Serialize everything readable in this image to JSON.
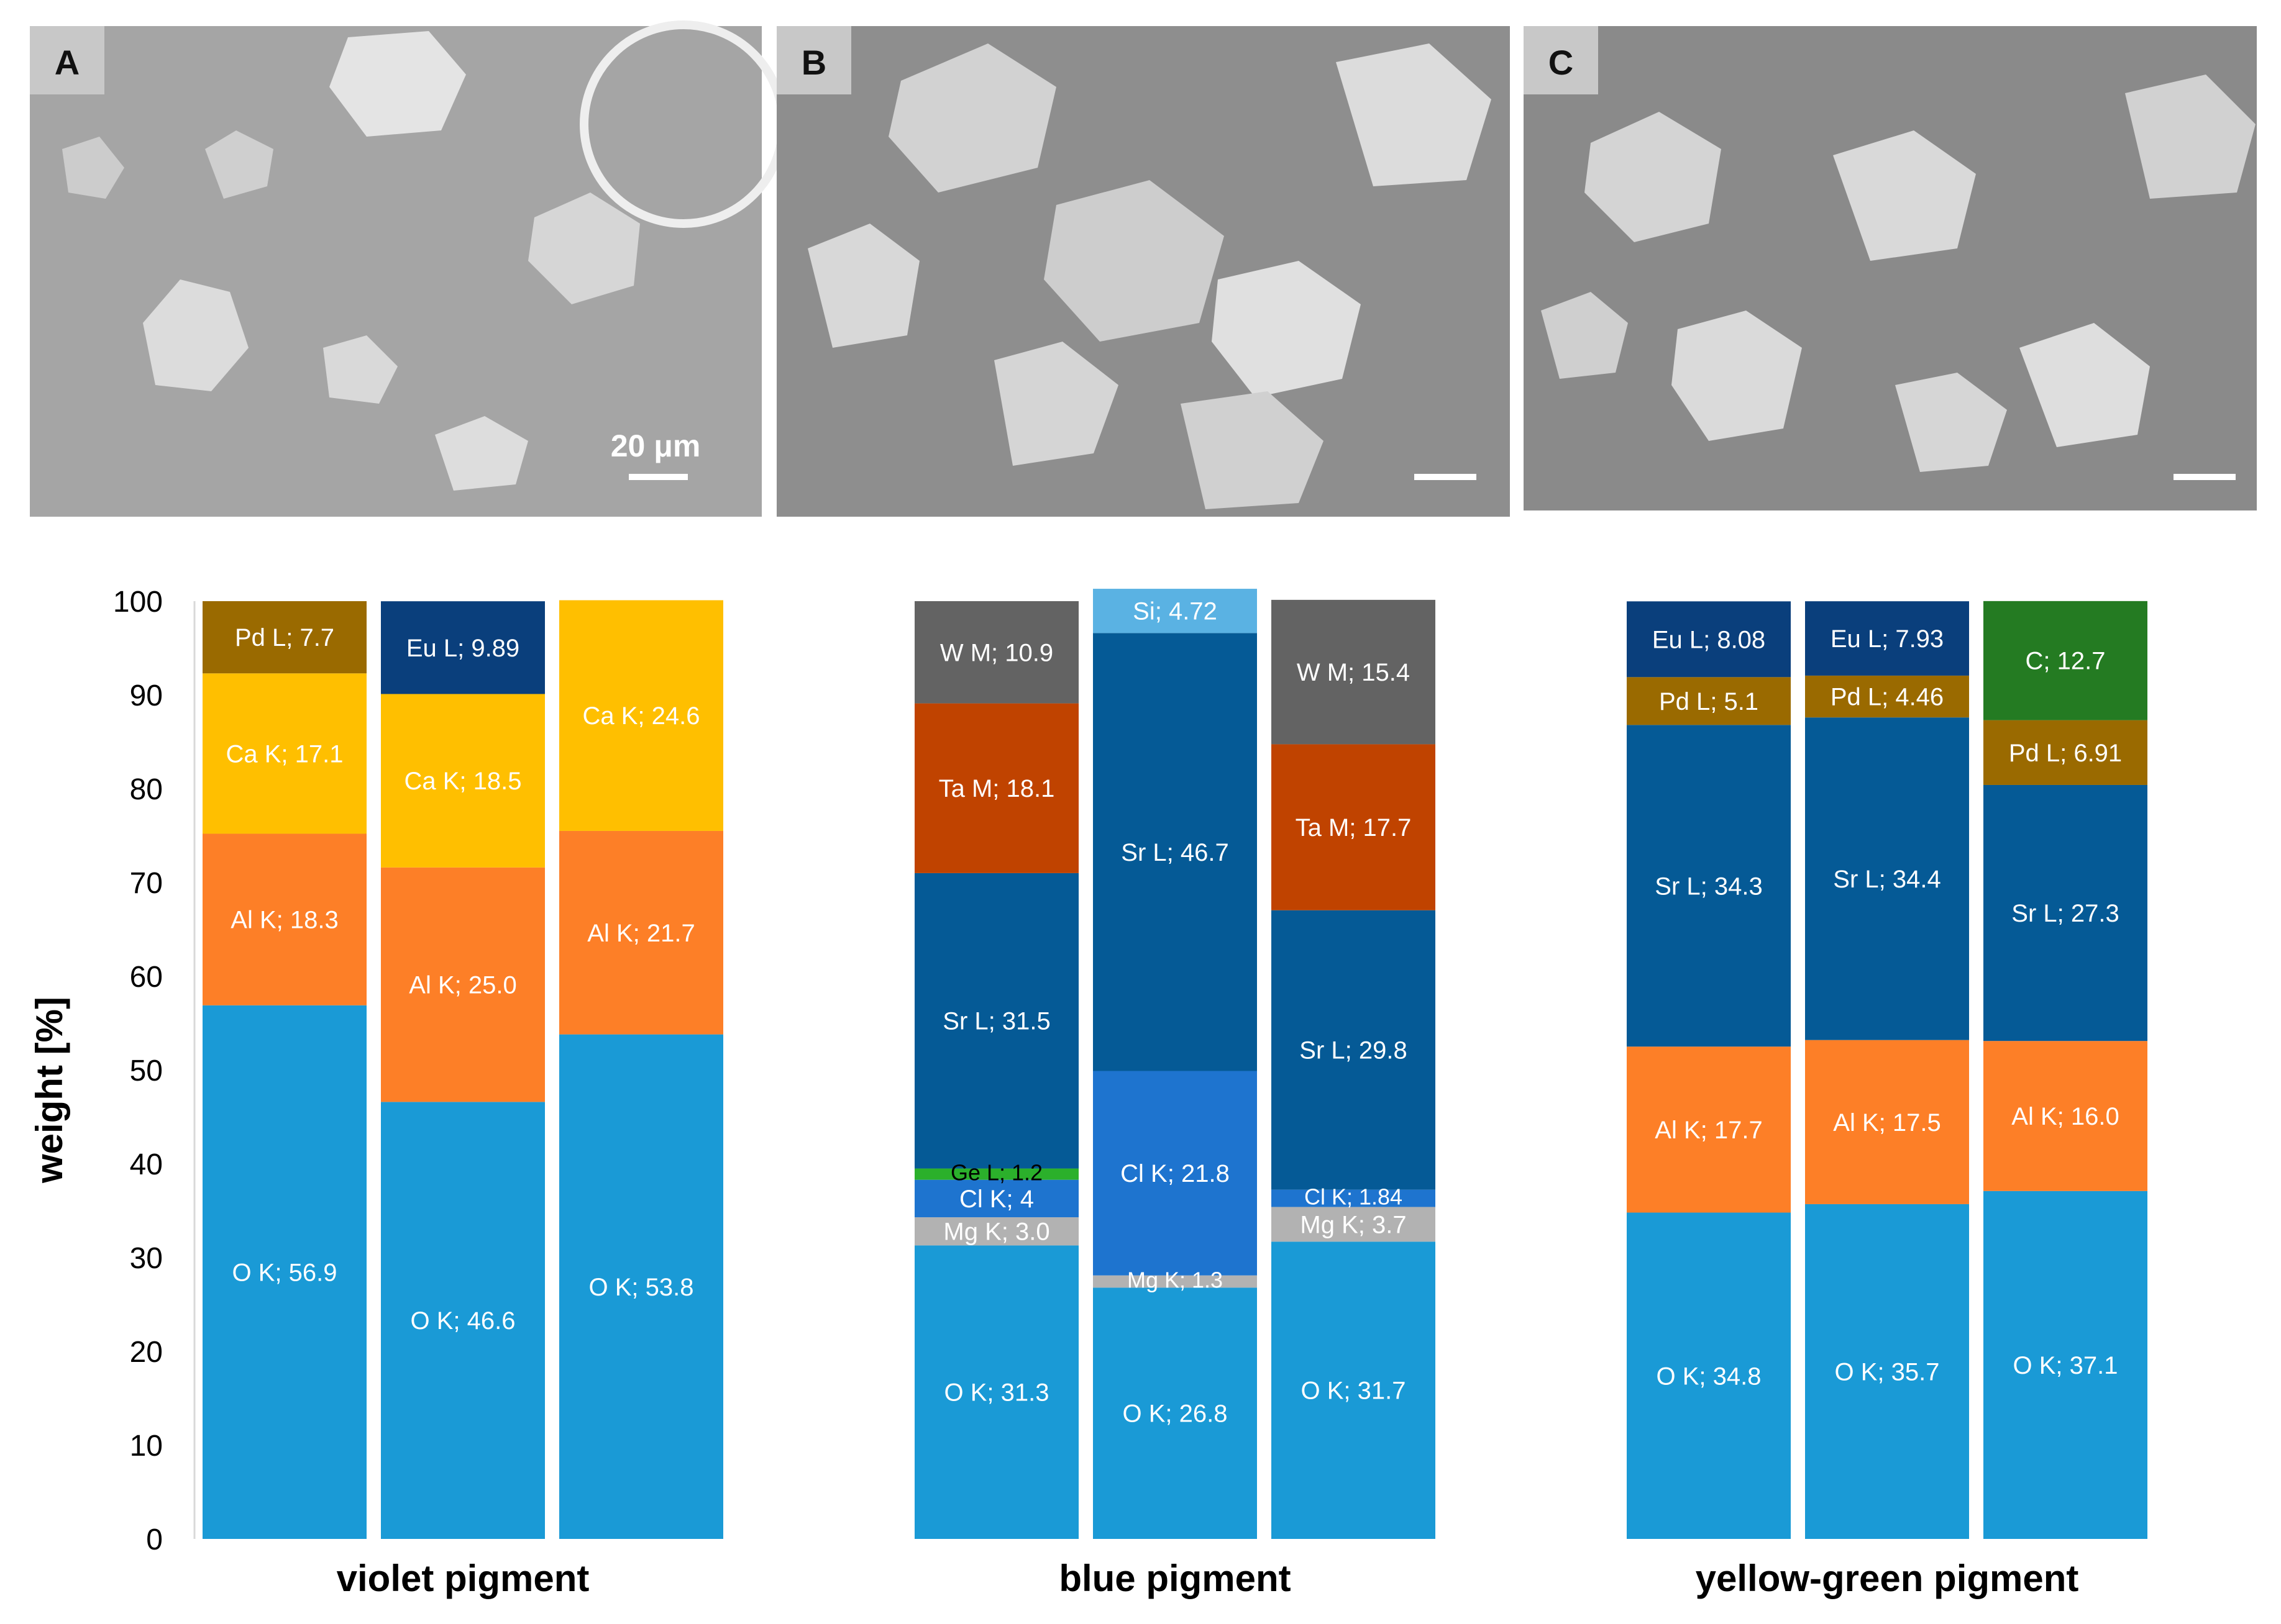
{
  "panels": [
    {
      "label": "A",
      "scale_bar_text": "20 μm"
    },
    {
      "label": "B",
      "scale_bar_text": ""
    },
    {
      "label": "C",
      "scale_bar_text": ""
    }
  ],
  "colors": {
    "O K": "#1a9ad6",
    "Al K": "#fd7f27",
    "Ca K": "#ffbf00",
    "Pd L": "#9a6a00",
    "Eu L": "#0a3f7c",
    "Mg K": "#b2b2b2",
    "Cl K": "#1e74cf",
    "Ge L": "#2bb02b",
    "Sr L": "#055a96",
    "Ta M": "#c04300",
    "W M": "#636363",
    "Si": "#5ab2e3",
    "C": "#247b22"
  },
  "chart_data": {
    "type": "bar",
    "stacked": true,
    "ylabel": "weight [%]",
    "xlabel": "",
    "ylim": [
      0,
      100
    ],
    "yticks": [
      0,
      10,
      20,
      30,
      40,
      50,
      60,
      70,
      80,
      90,
      100
    ],
    "grid": false,
    "groups": [
      {
        "name": "violet pigment",
        "bars": [
          [
            {
              "el": "O K",
              "value": 56.9,
              "label": "O K; 56.9"
            },
            {
              "el": "Al K",
              "value": 18.3,
              "label": "Al K; 18.3"
            },
            {
              "el": "Ca K",
              "value": 17.1,
              "label": "Ca K; 17.1"
            },
            {
              "el": "Pd L",
              "value": 7.7,
              "label": "Pd L; 7.7"
            }
          ],
          [
            {
              "el": "O K",
              "value": 46.6,
              "label": "O K; 46.6"
            },
            {
              "el": "Al K",
              "value": 25.0,
              "label": "Al K; 25.0"
            },
            {
              "el": "Ca K",
              "value": 18.5,
              "label": "Ca K; 18.5"
            },
            {
              "el": "Eu L",
              "value": 9.89,
              "label": "Eu L; 9.89"
            }
          ],
          [
            {
              "el": "O K",
              "value": 53.8,
              "label": "O K; 53.8"
            },
            {
              "el": "Al K",
              "value": 21.7,
              "label": "Al K; 21.7"
            },
            {
              "el": "Ca K",
              "value": 24.6,
              "label": "Ca K; 24.6"
            }
          ]
        ]
      },
      {
        "name": "blue pigment",
        "bars": [
          [
            {
              "el": "O K",
              "value": 31.3,
              "label": "O K; 31.3"
            },
            {
              "el": "Mg K",
              "value": 3.0,
              "label": "Mg K; 3.0"
            },
            {
              "el": "Cl K",
              "value": 4,
              "label": "Cl K; 4"
            },
            {
              "el": "Ge L",
              "value": 1.2,
              "label": "Ge L; 1.2"
            },
            {
              "el": "Sr L",
              "value": 31.5,
              "label": "Sr L; 31.5"
            },
            {
              "el": "Ta M",
              "value": 18.1,
              "label": "Ta M; 18.1"
            },
            {
              "el": "W M",
              "value": 10.9,
              "label": "W M; 10.9"
            }
          ],
          [
            {
              "el": "O K",
              "value": 26.8,
              "label": "O K; 26.8"
            },
            {
              "el": "Mg K",
              "value": 1.3,
              "label": "Mg K; 1.3"
            },
            {
              "el": "Cl K",
              "value": 21.8,
              "label": "Cl K; 21.8"
            },
            {
              "el": "Sr L",
              "value": 46.7,
              "label": "Sr L; 46.7"
            },
            {
              "el": "Si",
              "value": 4.72,
              "label": "Si; 4.72"
            }
          ],
          [
            {
              "el": "O K",
              "value": 31.7,
              "label": "O K; 31.7"
            },
            {
              "el": "Mg K",
              "value": 3.7,
              "label": "Mg K; 3.7"
            },
            {
              "el": "Cl K",
              "value": 1.84,
              "label": "Cl K; 1.84"
            },
            {
              "el": "Sr L",
              "value": 29.8,
              "label": "Sr L; 29.8"
            },
            {
              "el": "Ta M",
              "value": 17.7,
              "label": "Ta M; 17.7"
            },
            {
              "el": "W M",
              "value": 15.4,
              "label": "W M; 15.4"
            }
          ]
        ]
      },
      {
        "name": "yellow-green pigment",
        "bars": [
          [
            {
              "el": "O K",
              "value": 34.8,
              "label": "O K; 34.8"
            },
            {
              "el": "Al K",
              "value": 17.7,
              "label": "Al K; 17.7"
            },
            {
              "el": "Sr L",
              "value": 34.3,
              "label": "Sr L; 34.3"
            },
            {
              "el": "Pd L",
              "value": 5.1,
              "label": "Pd L; 5.1"
            },
            {
              "el": "Eu L",
              "value": 8.08,
              "label": "Eu L; 8.08"
            }
          ],
          [
            {
              "el": "O K",
              "value": 35.7,
              "label": "O K; 35.7"
            },
            {
              "el": "Al K",
              "value": 17.5,
              "label": "Al K; 17.5"
            },
            {
              "el": "Sr L",
              "value": 34.4,
              "label": "Sr L; 34.4"
            },
            {
              "el": "Pd L",
              "value": 4.46,
              "label": "Pd L; 4.46"
            },
            {
              "el": "Eu L",
              "value": 7.93,
              "label": "Eu L; 7.93"
            }
          ],
          [
            {
              "el": "O K",
              "value": 37.1,
              "label": "O K; 37.1"
            },
            {
              "el": "Al K",
              "value": 16.0,
              "label": "Al K; 16.0"
            },
            {
              "el": "Sr L",
              "value": 27.3,
              "label": "Sr L; 27.3"
            },
            {
              "el": "Pd L",
              "value": 6.91,
              "label": "Pd L; 6.91"
            },
            {
              "el": "C",
              "value": 12.7,
              "label": "C; 12.7"
            }
          ]
        ]
      }
    ]
  }
}
